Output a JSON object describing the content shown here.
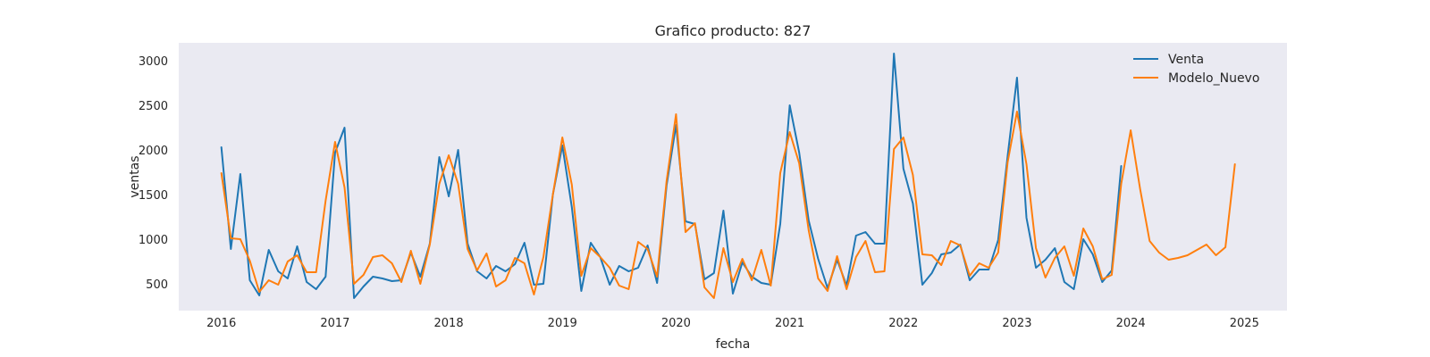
{
  "chart_data": {
    "type": "line",
    "title": "Grafico producto: 827",
    "xlabel": "fecha",
    "ylabel": "ventas",
    "x_start": "2016-01",
    "x_frequency": "monthly",
    "xlim": [
      2015.625,
      2025.375
    ],
    "ylim": [
      200,
      3200
    ],
    "x_ticks": [
      2016,
      2017,
      2018,
      2019,
      2020,
      2021,
      2022,
      2023,
      2024,
      2025
    ],
    "y_ticks": [
      500,
      1000,
      1500,
      2000,
      2500,
      3000
    ],
    "grid": false,
    "background": "#eaeaf2",
    "legend_position": "top-right",
    "series": [
      {
        "name": "Venta",
        "color": "#1f77b4",
        "values": [
          2030,
          890,
          1730,
          540,
          370,
          880,
          640,
          560,
          920,
          520,
          440,
          580,
          1970,
          2250,
          340,
          470,
          580,
          560,
          530,
          540,
          850,
          580,
          950,
          1920,
          1480,
          2000,
          950,
          640,
          560,
          700,
          640,
          720,
          960,
          490,
          500,
          1500,
          2050,
          1360,
          420,
          960,
          800,
          490,
          700,
          640,
          680,
          930,
          510,
          1600,
          2280,
          1200,
          1170,
          550,
          620,
          1320,
          390,
          740,
          580,
          510,
          490,
          1170,
          2500,
          1970,
          1210,
          780,
          450,
          770,
          480,
          1040,
          1080,
          950,
          950,
          3080,
          1790,
          1400,
          490,
          620,
          830,
          850,
          940,
          540,
          660,
          660,
          990,
          1930,
          2810,
          1240,
          680,
          770,
          900,
          520,
          440,
          1000,
          830,
          520,
          650,
          1820
        ]
      },
      {
        "name": "Modelo_Nuevo",
        "color": "#ff7f0e",
        "values": [
          1740,
          1010,
          1000,
          760,
          410,
          540,
          490,
          750,
          820,
          630,
          630,
          1430,
          2090,
          1580,
          500,
          600,
          800,
          820,
          730,
          520,
          870,
          500,
          940,
          1620,
          1940,
          1620,
          890,
          650,
          840,
          470,
          540,
          790,
          730,
          380,
          800,
          1500,
          2140,
          1610,
          590,
          900,
          800,
          680,
          480,
          440,
          970,
          890,
          580,
          1650,
          2400,
          1080,
          1180,
          460,
          340,
          900,
          520,
          780,
          540,
          880,
          480,
          1740,
          2200,
          1850,
          1100,
          560,
          420,
          810,
          440,
          800,
          980,
          630,
          640,
          2010,
          2140,
          1720,
          830,
          820,
          710,
          980,
          930,
          590,
          730,
          680,
          850,
          1860,
          2430,
          1840,
          900,
          570,
          790,
          920,
          590,
          1120,
          920,
          550,
          600,
          1620,
          2220,
          1560,
          980,
          850,
          770,
          790,
          820,
          880,
          940,
          820,
          910,
          1840
        ]
      }
    ]
  }
}
